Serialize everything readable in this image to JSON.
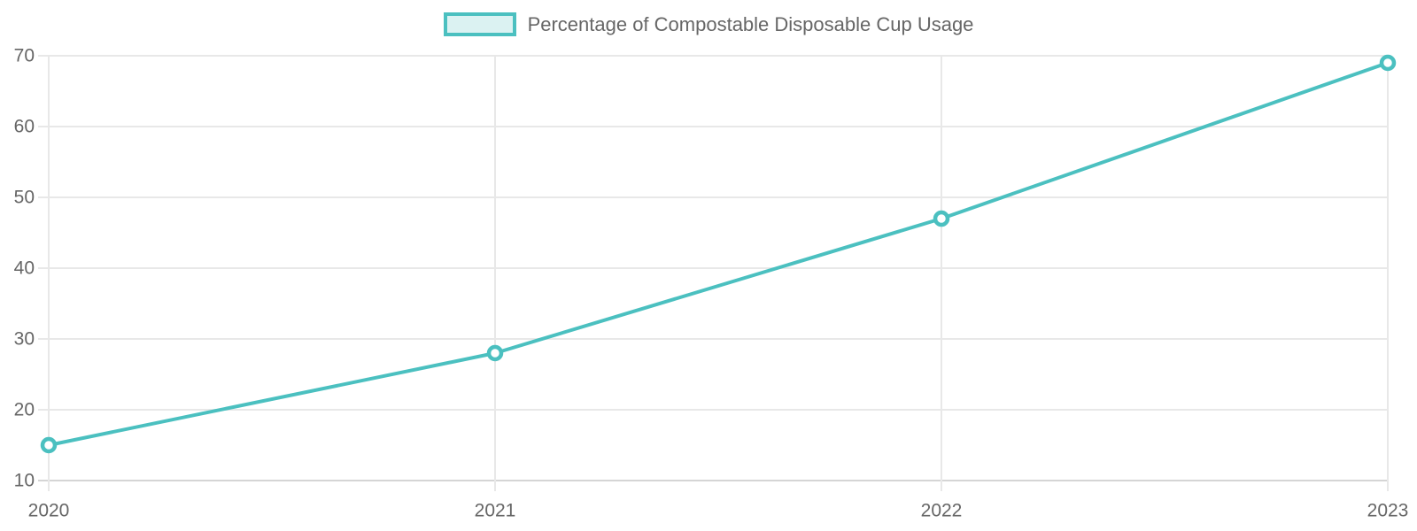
{
  "chart_data": {
    "type": "line",
    "title": "",
    "legend": {
      "position": "top",
      "label": "Percentage of Compostable Disposable Cup Usage"
    },
    "categories": [
      "2020",
      "2021",
      "2022",
      "2023"
    ],
    "series": [
      {
        "name": "Percentage of Compostable Disposable Cup Usage",
        "values": [
          15,
          28,
          47,
          69
        ]
      }
    ],
    "xlabel": "",
    "ylabel": "",
    "ylim": [
      10,
      70
    ],
    "yticks": [
      10,
      20,
      30,
      40,
      50,
      60,
      70
    ],
    "grid": true,
    "colors": {
      "line": "#4BC0C0",
      "point_fill": "#FFFFFF",
      "legend_fill": "#DBF2F2",
      "grid": "#E8E8E8",
      "axis_line": "#D5D5D5",
      "text": "#666666"
    }
  }
}
